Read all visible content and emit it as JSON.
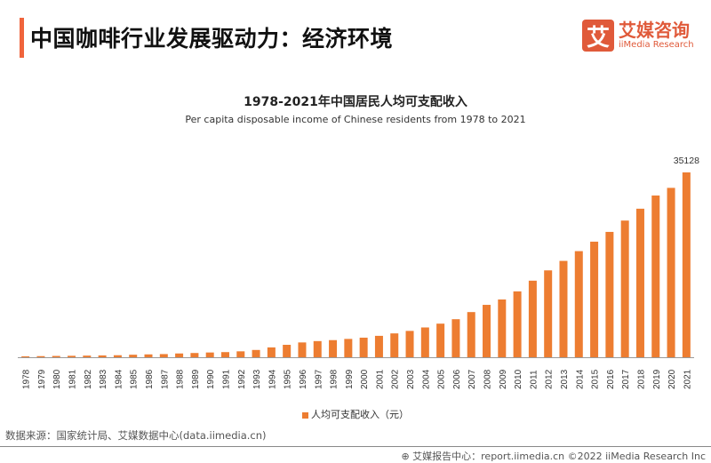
{
  "header": {
    "title": "中国咖啡行业发展驱动力：经济环境",
    "logo_mark": "艾",
    "logo_cn": "艾媒咨询",
    "logo_en": "iiMedia Research"
  },
  "colors": {
    "accent": "#f0643c",
    "bar": "#ed7d31",
    "logo": "#e05a3a"
  },
  "chart_data": {
    "type": "bar",
    "title": "1978-2021年中国居民人均可支配收入",
    "subtitle": "Per capita disposable income of Chinese residents from 1978 to 2021",
    "categories": [
      "1978",
      "1979",
      "1980",
      "1981",
      "1982",
      "1983",
      "1984",
      "1985",
      "1986",
      "1987",
      "1988",
      "1989",
      "1990",
      "1991",
      "1992",
      "1993",
      "1994",
      "1995",
      "1996",
      "1997",
      "1998",
      "1999",
      "2000",
      "2001",
      "2002",
      "2003",
      "2004",
      "2005",
      "2006",
      "2007",
      "2008",
      "2009",
      "2010",
      "2011",
      "2012",
      "2013",
      "2014",
      "2015",
      "2016",
      "2017",
      "2018",
      "2019",
      "2020",
      "2021"
    ],
    "series": [
      {
        "name": "人均可支配收入（元）",
        "values": [
          171,
          212,
          247,
          275,
          310,
          346,
          385,
          478,
          545,
          602,
          718,
          807,
          904,
          976,
          1125,
          1385,
          1870,
          2363,
          2814,
          3070,
          3254,
          3485,
          3721,
          4070,
          4532,
          5007,
          5661,
          6385,
          7229,
          8584,
          9957,
          10977,
          12520,
          14551,
          16510,
          18311,
          20167,
          21966,
          23821,
          25974,
          28228,
          30733,
          32189,
          35128
        ]
      }
    ],
    "data_labels": {
      "2021": "35128"
    },
    "legend_position": "bottom",
    "grid": false
  },
  "footer": {
    "source": "数据来源：国家统计局、艾媒数据中心(data.iimedia.cn)",
    "copyright": "艾媒报告中心：report.iimedia.cn  ©2022  iiMedia Research  Inc"
  }
}
